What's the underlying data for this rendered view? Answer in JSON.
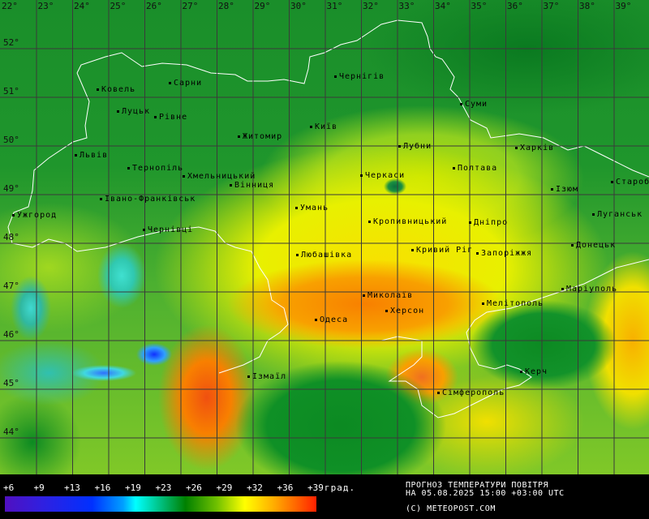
{
  "map": {
    "longitude_labels": [
      "22°",
      "23°",
      "24°",
      "25°",
      "26°",
      "27°",
      "28°",
      "29°",
      "30°",
      "31°",
      "32°",
      "33°",
      "34°",
      "35°",
      "36°",
      "37°",
      "38°",
      "39°"
    ],
    "latitude_labels": [
      "52°",
      "51°",
      "50°",
      "49°",
      "48°",
      "47°",
      "46°",
      "45°",
      "44°"
    ],
    "cities": [
      "Ковель",
      "Сарни",
      "Луцьк",
      "Рівне",
      "Житомир",
      "Київ",
      "Чернігів",
      "Суми",
      "Львів",
      "Тернопіль",
      "Хмельницький",
      "Вінниця",
      "Лубни",
      "Черкаси",
      "Полтава",
      "Харків",
      "Ізюм",
      "Староб",
      "Івано-Франківськ",
      "Ужгород",
      "Умань",
      "Кропивницький",
      "Дніпро",
      "Луганськ",
      "Чернівці",
      "Любашівка",
      "Кривий Ріг",
      "Запоріжжя",
      "Донецьк",
      "Миколаїв",
      "Херсон",
      "Мелітополь",
      "Маріуполь",
      "Одеса",
      "Ізмаїл",
      "Сімферополь",
      "Керч"
    ]
  },
  "legend": {
    "ticks": [
      "+6",
      "+9",
      "+13",
      "+16",
      "+19",
      "+23",
      "+26",
      "+29",
      "+32",
      "+36",
      "+39"
    ],
    "unit": "град.",
    "colors": [
      "#5010c0",
      "#0030ff",
      "#00ffff",
      "#008000",
      "#ffff00",
      "#ff2000"
    ]
  },
  "info": {
    "title": "ПРОГНОЗ ТЕМПЕРАТУРИ ПОВІТРЯ",
    "datetime": "НА 05.08.2025 15:00 +03:00 UTC",
    "copyright": "(C) METEOPOST.COM"
  }
}
